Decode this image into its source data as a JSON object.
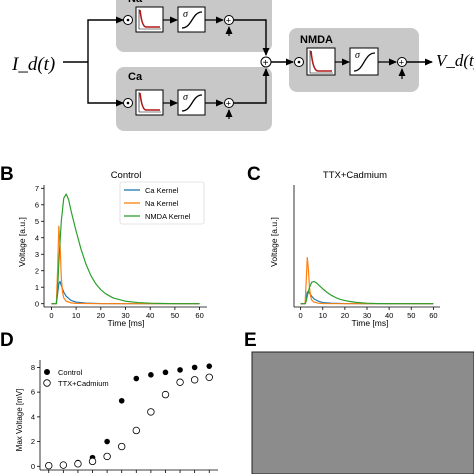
{
  "diagram": {
    "input_label": "I_d(t)",
    "output_label": "V_d(t)",
    "blocks": [
      {
        "label": "Na"
      },
      {
        "label": "Ca"
      },
      {
        "label": "NMDA"
      }
    ],
    "sigma_symbol": "σ",
    "op_multiply": "⊗",
    "op_add": "+"
  },
  "panels": {
    "B": {
      "letter": "B"
    },
    "C": {
      "letter": "C"
    },
    "D": {
      "letter": "D"
    },
    "E": {
      "letter": "E"
    }
  },
  "colors": {
    "box_fill": "#c8c8c8",
    "kernel_curve": "#b01818",
    "ca": "#1f77b4",
    "na": "#ff7f0e",
    "nmda": "#2ca02c",
    "panel_e_fill": "#8c8c8c"
  },
  "chart_data": [
    {
      "type": "line",
      "title": "Control",
      "xlabel": "Time [ms]",
      "ylabel": "Voltage [a.u.]",
      "xlim": [
        -3,
        63
      ],
      "ylim": [
        -0.2,
        7.2
      ],
      "xticks": [
        "0",
        "10",
        "20",
        "30",
        "40",
        "50",
        "60"
      ],
      "yticks": [
        "0",
        "1",
        "2",
        "3",
        "4",
        "5",
        "6",
        "7"
      ],
      "legend": "top-right",
      "series": [
        {
          "name": "Ca Kernel",
          "color": "#1f77b4",
          "x": [
            0,
            2,
            2.5,
            3,
            3.5,
            4,
            5,
            6,
            8,
            10,
            14,
            20,
            30,
            60
          ],
          "y": [
            0,
            0,
            0.6,
            1.2,
            1.35,
            1.1,
            0.7,
            0.45,
            0.2,
            0.1,
            0.04,
            0.01,
            0,
            0
          ]
        },
        {
          "name": "Na Kernel",
          "color": "#ff7f0e",
          "x": [
            0,
            2,
            2.5,
            3,
            3.5,
            4,
            4.5,
            5,
            6,
            8,
            10,
            20,
            60
          ],
          "y": [
            0,
            0,
            2.0,
            4.7,
            3.6,
            1.6,
            0.7,
            0.35,
            0.15,
            0.05,
            0.02,
            0,
            0
          ]
        },
        {
          "name": "NMDA Kernel",
          "color": "#2ca02c",
          "x": [
            0,
            2,
            2.5,
            3,
            4,
            5,
            6,
            7,
            8,
            10,
            12,
            14,
            16,
            18,
            20,
            22,
            25,
            30,
            35,
            40,
            50,
            60
          ],
          "y": [
            0,
            0,
            0.8,
            2.5,
            5.0,
            6.4,
            6.65,
            6.3,
            5.6,
            4.4,
            3.3,
            2.4,
            1.7,
            1.2,
            0.85,
            0.6,
            0.35,
            0.15,
            0.07,
            0.03,
            0,
            0
          ]
        }
      ]
    },
    {
      "type": "line",
      "title": "TTX+Cadmium",
      "xlabel": "Time [ms]",
      "ylabel": "Voltage [a.u.]",
      "xlim": [
        -3,
        63
      ],
      "ylim": [
        -0.2,
        7.2
      ],
      "xticks": [
        "0",
        "10",
        "20",
        "30",
        "40",
        "50",
        "60"
      ],
      "yticks": [],
      "series": [
        {
          "color": "#1f77b4",
          "x": [
            0,
            2,
            2.5,
            3,
            3.5,
            4,
            5,
            6,
            8,
            10,
            14,
            20,
            30,
            60
          ],
          "y": [
            0,
            0,
            0.3,
            0.7,
            0.75,
            0.65,
            0.45,
            0.3,
            0.15,
            0.07,
            0.03,
            0.01,
            0,
            0
          ]
        },
        {
          "color": "#ff7f0e",
          "x": [
            0,
            2,
            2.5,
            3,
            3.5,
            4,
            4.5,
            5,
            6,
            8,
            10,
            20,
            60
          ],
          "y": [
            0,
            0,
            1.3,
            2.8,
            2.1,
            1.0,
            0.45,
            0.22,
            0.1,
            0.03,
            0.01,
            0,
            0
          ]
        },
        {
          "color": "#2ca02c",
          "x": [
            0,
            2,
            2.5,
            3,
            4,
            5,
            6,
            7,
            8,
            10,
            12,
            14,
            16,
            18,
            20,
            22,
            25,
            30,
            35,
            40,
            50,
            60
          ],
          "y": [
            0,
            0,
            0.15,
            0.45,
            1.0,
            1.3,
            1.35,
            1.28,
            1.15,
            0.9,
            0.68,
            0.5,
            0.36,
            0.26,
            0.19,
            0.14,
            0.08,
            0.03,
            0.01,
            0,
            0,
            0
          ]
        }
      ]
    },
    {
      "type": "scatter",
      "ylabel": "Max Voltage [mV]",
      "ylim": [
        -0.3,
        8.6
      ],
      "xlim": [
        0.4,
        12.6
      ],
      "yticks": [
        "0",
        "2",
        "4",
        "6",
        "8"
      ],
      "legend": "top-left",
      "series": [
        {
          "name": "Control",
          "marker": "filled",
          "x": [
            1,
            2,
            3,
            4,
            5,
            6,
            7,
            8,
            9,
            10,
            11,
            12
          ],
          "y": [
            0.05,
            0.15,
            0.3,
            0.7,
            2.0,
            5.3,
            7.1,
            7.4,
            7.6,
            7.8,
            8.0,
            8.1
          ]
        },
        {
          "name": "TTX+Cadmium",
          "marker": "open",
          "x": [
            1,
            2,
            3,
            4,
            5,
            6,
            7,
            8,
            9,
            10,
            11,
            12
          ],
          "y": [
            0.05,
            0.1,
            0.2,
            0.4,
            0.8,
            1.6,
            2.9,
            4.4,
            5.8,
            6.8,
            7.0,
            7.2
          ]
        }
      ]
    }
  ]
}
